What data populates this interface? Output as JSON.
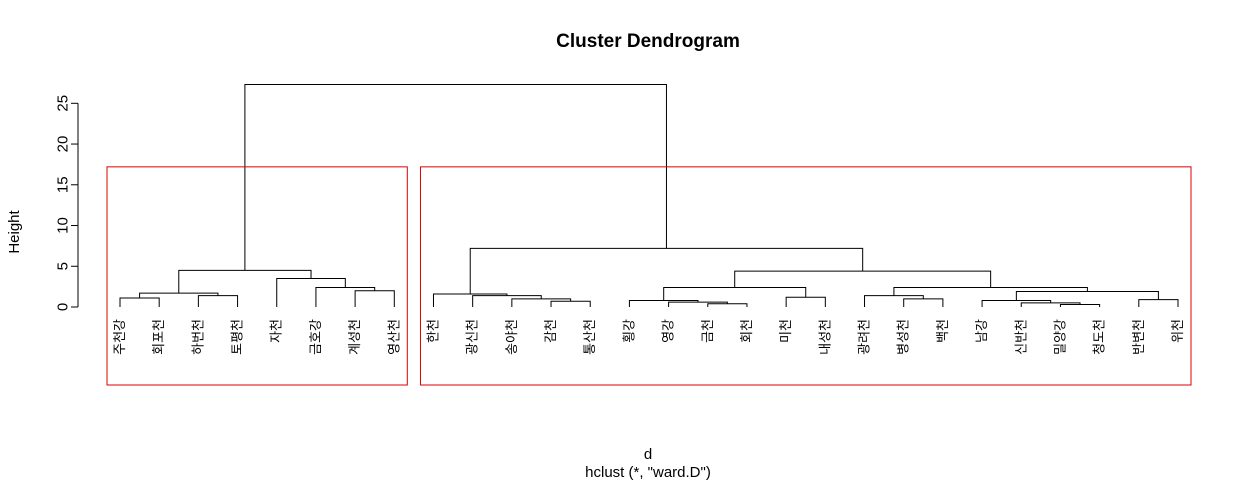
{
  "chart_data": {
    "type": "dendrogram",
    "title": "Cluster Dendrogram",
    "ylabel": "Height",
    "xlabel": "d",
    "subtitle": "hclust (*, \"ward.D\")",
    "ylim": [
      0,
      27
    ],
    "yticks": [
      0,
      5,
      10,
      15,
      20,
      25
    ],
    "leaves": [
      "주천강",
      "회포천",
      "하번천",
      "토평천",
      "자천",
      "금호강",
      "계성천",
      "영산천",
      "한천",
      "광신천",
      "송야천",
      "감천",
      "통산천",
      "횡강",
      "영강",
      "금천",
      "회천",
      "미천",
      "내성천",
      "광려천",
      "병성천",
      "백천",
      "남강",
      "신반천",
      "밀양강",
      "청도천",
      "반변천",
      "위천"
    ],
    "merges": [
      {
        "a": [
          "leaf",
          6
        ],
        "b": [
          "leaf",
          7
        ],
        "height": 2.0
      },
      {
        "a": [
          "leaf",
          5
        ],
        "b": [
          "node",
          0
        ],
        "height": 2.4
      },
      {
        "a": [
          "leaf",
          4
        ],
        "b": [
          "node",
          1
        ],
        "height": 3.5
      },
      {
        "a": [
          "leaf",
          2
        ],
        "b": [
          "leaf",
          3
        ],
        "height": 1.4
      },
      {
        "a": [
          "leaf",
          0
        ],
        "b": [
          "leaf",
          1
        ],
        "height": 1.1
      },
      {
        "a": [
          "node",
          4
        ],
        "b": [
          "node",
          3
        ],
        "height": 1.7
      },
      {
        "a": [
          "node",
          5
        ],
        "b": [
          "node",
          2
        ],
        "height": 4.5
      },
      {
        "a": [
          "leaf",
          11
        ],
        "b": [
          "leaf",
          12
        ],
        "height": 0.7
      },
      {
        "a": [
          "leaf",
          10
        ],
        "b": [
          "node",
          7
        ],
        "height": 1.0
      },
      {
        "a": [
          "leaf",
          9
        ],
        "b": [
          "node",
          8
        ],
        "height": 1.4
      },
      {
        "a": [
          "leaf",
          8
        ],
        "b": [
          "node",
          9
        ],
        "height": 1.6
      },
      {
        "a": [
          "leaf",
          15
        ],
        "b": [
          "leaf",
          16
        ],
        "height": 0.4
      },
      {
        "a": [
          "leaf",
          14
        ],
        "b": [
          "node",
          11
        ],
        "height": 0.6
      },
      {
        "a": [
          "leaf",
          13
        ],
        "b": [
          "node",
          12
        ],
        "height": 0.8
      },
      {
        "a": [
          "leaf",
          17
        ],
        "b": [
          "leaf",
          18
        ],
        "height": 1.2
      },
      {
        "a": [
          "node",
          13
        ],
        "b": [
          "node",
          14
        ],
        "height": 2.4
      },
      {
        "a": [
          "leaf",
          20
        ],
        "b": [
          "leaf",
          21
        ],
        "height": 1.0
      },
      {
        "a": [
          "leaf",
          19
        ],
        "b": [
          "node",
          16
        ],
        "height": 1.4
      },
      {
        "a": [
          "leaf",
          24
        ],
        "b": [
          "leaf",
          25
        ],
        "height": 0.3
      },
      {
        "a": [
          "leaf",
          23
        ],
        "b": [
          "node",
          18
        ],
        "height": 0.5
      },
      {
        "a": [
          "leaf",
          22
        ],
        "b": [
          "node",
          19
        ],
        "height": 0.8
      },
      {
        "a": [
          "leaf",
          26
        ],
        "b": [
          "leaf",
          27
        ],
        "height": 0.9
      },
      {
        "a": [
          "node",
          20
        ],
        "b": [
          "node",
          21
        ],
        "height": 1.9
      },
      {
        "a": [
          "node",
          17
        ],
        "b": [
          "node",
          22
        ],
        "height": 2.4
      },
      {
        "a": [
          "node",
          15
        ],
        "b": [
          "node",
          23
        ],
        "height": 4.4
      },
      {
        "a": [
          "node",
          10
        ],
        "b": [
          "node",
          24
        ],
        "height": 7.2
      },
      {
        "a": [
          "node",
          6
        ],
        "b": [
          "node",
          25
        ],
        "height": 27.3
      }
    ],
    "cluster_boxes": [
      {
        "first_leaf": 0,
        "last_leaf": 7
      },
      {
        "first_leaf": 8,
        "last_leaf": 27
      }
    ],
    "cut_height": 17.2,
    "box_color": "#dd0000",
    "line_color": "#000000"
  }
}
